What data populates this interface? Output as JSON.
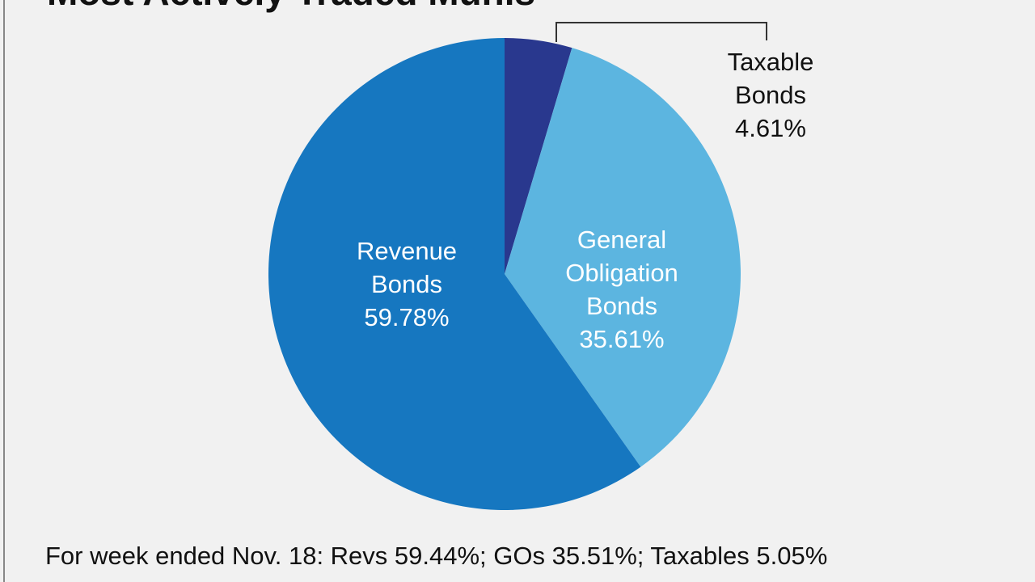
{
  "chart_data": {
    "type": "pie",
    "title": "Most Actively Traded Munis",
    "categories": [
      "Taxable Bonds",
      "General Obligation Bonds",
      "Revenue Bonds"
    ],
    "values": [
      4.61,
      35.61,
      59.78
    ],
    "value_labels": [
      "4.61%",
      "35.61%",
      "59.78%"
    ],
    "colors": [
      "#29388e",
      "#5cb5e0",
      "#1677c0"
    ],
    "note": "For week ended Nov. 18: Revs 59.44%; GOs 35.51%; Taxables 5.05%"
  }
}
